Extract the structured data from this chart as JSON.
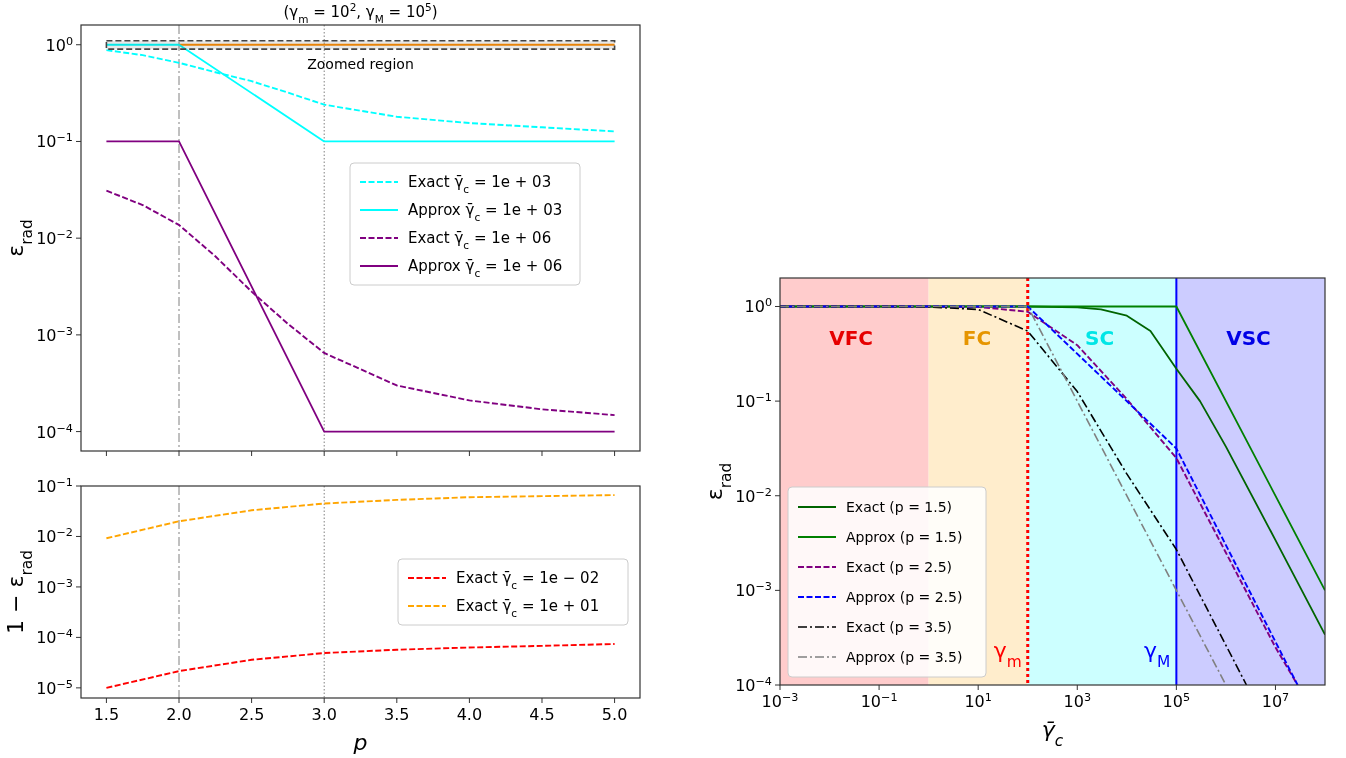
{
  "chart_data": [
    {
      "type": "line",
      "title": "(γ$_{m}$ = 10$^{2}$, γ$_{M}$ = 10$^{5}$)",
      "ylabel": "ε$_{rad}$",
      "log": "y",
      "tick_labels": "y",
      "legend": "right",
      "xlim": [
        1.325,
        5.175
      ],
      "ylim": [
        6.3e-05,
        1.6
      ],
      "xticks": [
        {
          "value": 1.5,
          "label": null
        },
        {
          "value": 2,
          "label": null
        },
        {
          "value": 2.5,
          "label": null
        },
        {
          "value": 3,
          "label": null
        },
        {
          "value": 3.5,
          "label": null
        },
        {
          "value": 4,
          "label": null
        },
        {
          "value": 4.5,
          "label": null
        },
        {
          "value": 5,
          "label": null
        }
      ],
      "yticks": [
        {
          "value": 0.0001,
          "label": "10$^{−4}$"
        },
        {
          "value": 0.001,
          "label": "10$^{−3}$"
        },
        {
          "value": 0.01,
          "label": "10$^{−2}$"
        },
        {
          "value": 0.1,
          "label": "10$^{−1}$"
        },
        {
          "value": 1,
          "label": "10$^{0}$"
        }
      ],
      "series": [
        {
          "color": "#ff8c00",
          "line_style": "solid",
          "x": [
            2,
            3,
            5
          ],
          "values": [
            1,
            1,
            1
          ]
        },
        {
          "name": "Exact γ̄$_{c}$ = 1e + 03",
          "color": "#00ffff",
          "line_style": "dashed",
          "x": [
            1.5,
            1.75,
            2,
            2.25,
            2.5,
            2.75,
            3,
            3.5,
            4,
            4.5,
            5
          ],
          "values": [
            0.88,
            0.78,
            0.65,
            0.52,
            0.42,
            0.32,
            0.24,
            0.18,
            0.155,
            0.14,
            0.127
          ]
        },
        {
          "name": "Approx γ̄$_{c}$ = 1e + 03",
          "color": "#00ffff",
          "line_style": "solid",
          "x": [
            1.5,
            2,
            3,
            5
          ],
          "values": [
            1,
            1,
            0.1,
            0.1
          ]
        },
        {
          "name": "Exact γ̄$_{c}$ = 1e + 06",
          "color": "#800080",
          "line_style": "dashed",
          "x": [
            1.5,
            1.75,
            2,
            2.25,
            2.5,
            2.75,
            3,
            3.5,
            4,
            4.5,
            5
          ],
          "values": [
            0.031,
            0.022,
            0.0137,
            0.0065,
            0.0028,
            0.0013,
            0.00065,
            0.0003,
            0.00021,
            0.00017,
            0.000148
          ]
        },
        {
          "name": "Approx γ̄$_{c}$ = 1e + 06",
          "color": "#800080",
          "line_style": "solid",
          "x": [
            1.5,
            2,
            3,
            5
          ],
          "values": [
            0.1,
            0.1,
            0.0001,
            0.0001
          ]
        }
      ],
      "ref_lines": [
        {
          "axis": "x",
          "value": 2,
          "color": "#808080",
          "line_style": "dashdot"
        },
        {
          "axis": "x",
          "value": 3,
          "color": "#808080",
          "line_style": "dotted"
        }
      ],
      "bands": [
        {
          "axis": "y",
          "from": 0.9,
          "to": 1.1,
          "label": "Zoomed region",
          "color": "#444444"
        }
      ]
    },
    {
      "type": "line",
      "xlabel": "p",
      "ylabel": "1 − ε$_{rad}$",
      "log": "y",
      "legend": "right",
      "xlim": [
        1.325,
        5.175
      ],
      "ylim": [
        6.3e-06,
        0.1
      ],
      "xticks": [
        {
          "value": 1.5,
          "label": "1.5"
        },
        {
          "value": 2,
          "label": "2.0"
        },
        {
          "value": 2.5,
          "label": "2.5"
        },
        {
          "value": 3,
          "label": "3.0"
        },
        {
          "value": 3.5,
          "label": "3.5"
        },
        {
          "value": 4,
          "label": "4.0"
        },
        {
          "value": 4.5,
          "label": "4.5"
        },
        {
          "value": 5,
          "label": "5.0"
        }
      ],
      "yticks": [
        {
          "value": 1e-05,
          "label": "10$^{−5}$"
        },
        {
          "value": 0.0001,
          "label": "10$^{−4}$"
        },
        {
          "value": 0.001,
          "label": "10$^{−3}$"
        },
        {
          "value": 0.01,
          "label": "10$^{−2}$"
        },
        {
          "value": 0.1,
          "label": "10$^{−1}$"
        }
      ],
      "x": [
        1.5,
        2,
        2.5,
        3,
        3.5,
        4,
        4.5,
        5
      ],
      "series": [
        {
          "name": "Exact γ̄$_{c}$ = 1e − 02",
          "color": "#ff0000",
          "line_style": "dashed",
          "values": [
            1e-05,
            2.15e-05,
            3.6e-05,
            4.9e-05,
            5.7e-05,
            6.3e-05,
            6.8e-05,
            7.4e-05
          ]
        },
        {
          "name": "Exact γ̄$_{c}$ = 1e + 01",
          "color": "#ffa500",
          "line_style": "dashed",
          "values": [
            0.0092,
            0.02,
            0.033,
            0.045,
            0.053,
            0.06,
            0.063,
            0.066
          ]
        }
      ],
      "ref_lines": [
        {
          "axis": "x",
          "value": 2,
          "color": "#808080",
          "line_style": "dashdot"
        },
        {
          "axis": "x",
          "value": 3,
          "color": "#808080",
          "line_style": "dotted"
        }
      ]
    },
    {
      "type": "line",
      "xlabel": "γ̄$_{c}$",
      "ylabel": "ε$_{rad}$",
      "log": "xy",
      "legend": "bottom left",
      "xlim": [
        0.001,
        100000000
      ],
      "ylim": [
        0.0001,
        2
      ],
      "xticks": [
        {
          "value": 0.001,
          "label": "10$^{−3}$"
        },
        {
          "value": 0.1,
          "label": "10$^{−1}$"
        },
        {
          "value": 10,
          "label": "10$^{1}$"
        },
        {
          "value": 1000,
          "label": "10$^{3}$"
        },
        {
          "value": 100000,
          "label": "10$^{5}$"
        },
        {
          "value": 10000000,
          "label": "10$^{7}$"
        }
      ],
      "yticks": [
        {
          "value": 0.0001,
          "label": "10$^{−4}$"
        },
        {
          "value": 0.001,
          "label": "10$^{−3}$"
        },
        {
          "value": 0.01,
          "label": "10$^{−2}$"
        },
        {
          "value": 0.1,
          "label": "10$^{−1}$"
        },
        {
          "value": 1,
          "label": "10$^{0}$"
        }
      ],
      "series": [
        {
          "name": "Exact (p = 1.5)",
          "color": "#006400",
          "line_style": "solid",
          "x": [
            0.001,
            100,
            1000,
            3000,
            10000,
            30000,
            100000,
            300000,
            1000000,
            10000000,
            100000000
          ],
          "values": [
            1,
            1,
            0.98,
            0.93,
            0.8,
            0.55,
            0.22,
            0.1,
            0.033,
            0.0034,
            0.00034
          ]
        },
        {
          "name": "Approx (p = 1.5)",
          "color": "#008000",
          "line_style": "solid",
          "x": [
            0.001,
            100000,
            100000000
          ],
          "values": [
            1,
            1,
            0.001
          ]
        },
        {
          "name": "Exact (p = 2.5)",
          "color": "#800080",
          "line_style": "dashed",
          "x": [
            0.001,
            1,
            10,
            100,
            1000,
            10000,
            100000,
            1000000,
            10000000,
            28000000
          ],
          "values": [
            1,
            1,
            0.99,
            0.88,
            0.39,
            0.105,
            0.025,
            0.0025,
            0.00025,
            0.0001
          ]
        },
        {
          "name": "Approx (p = 2.5)",
          "color": "#0000ff",
          "line_style": "dashed",
          "x": [
            0.001,
            100,
            100000,
            28000000
          ],
          "values": [
            1,
            1,
            0.0316,
            0.0001
          ]
        },
        {
          "name": "Exact (p = 3.5)",
          "color": "#000000",
          "line_style": "dashdot",
          "x": [
            0.001,
            0.1,
            1,
            10,
            100,
            1000,
            10000,
            100000,
            2600000
          ],
          "values": [
            1,
            1,
            0.99,
            0.93,
            0.55,
            0.126,
            0.017,
            0.0027,
            0.0001
          ]
        },
        {
          "name": "Approx (p = 3.5)",
          "color": "#808080",
          "line_style": "dashdot",
          "x": [
            0.001,
            100,
            100000,
            1000000
          ],
          "values": [
            1,
            1,
            0.001,
            0.0001
          ]
        }
      ],
      "bands": [
        {
          "axis": "x",
          "from": 0.001,
          "to": 1,
          "label": "VFC",
          "color": "#ffcccc"
        },
        {
          "axis": "x",
          "from": 1,
          "to": 100,
          "label": "FC",
          "color": "#ffedcc"
        },
        {
          "axis": "x",
          "from": 100,
          "to": 100000,
          "label": "SC",
          "color": "#ccffff"
        },
        {
          "axis": "x",
          "from": 100000,
          "to": 100000000,
          "label": "VSC",
          "color": "#ccccff"
        }
      ],
      "ref_lines": [
        {
          "axis": "x",
          "value": 100,
          "label": "γ$_{m}$",
          "color": "#ff0000",
          "line_style": "dotted"
        },
        {
          "axis": "x",
          "value": 100000,
          "label": "γ$_{M}$",
          "color": "#0000ff",
          "line_style": "solid"
        }
      ]
    }
  ]
}
